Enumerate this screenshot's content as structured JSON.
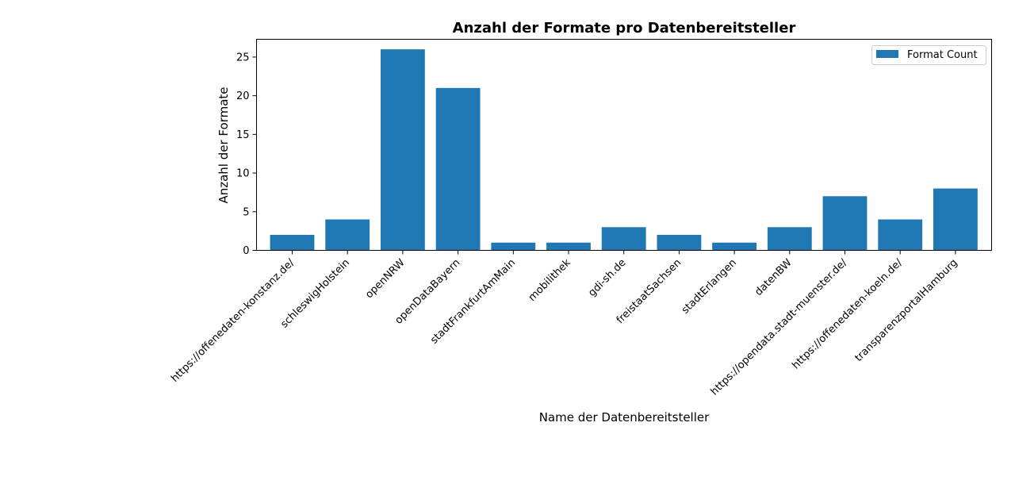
{
  "chart_data": {
    "type": "bar",
    "title": "Anzahl der Formate pro Datenbereitsteller",
    "xlabel": "Name der Datenbereitsteller",
    "ylabel": "Anzahl der Formate",
    "categories": [
      "https://offenedaten-konstanz.de/",
      "schleswigHolstein",
      "openNRW",
      "openDataBayern",
      "stadtFrankfurtAmMain",
      "mobilithek",
      "gdi-sh.de",
      "freistaatSachsen",
      "stadtErlangen",
      "datenBW",
      "https://opendata.stadt-muenster.de/",
      "https://offenedaten-koeln.de/",
      "transparenzportalHamburg"
    ],
    "series": [
      {
        "name": "Format Count",
        "values": [
          2,
          4,
          26,
          21,
          1,
          1,
          3,
          2,
          1,
          3,
          7,
          4,
          8
        ],
        "color": "#1f77b4"
      }
    ],
    "yticks": [
      0,
      5,
      10,
      15,
      20,
      25
    ],
    "ylim": [
      0,
      27.3
    ],
    "grid": false,
    "legend_position": "top-right"
  }
}
